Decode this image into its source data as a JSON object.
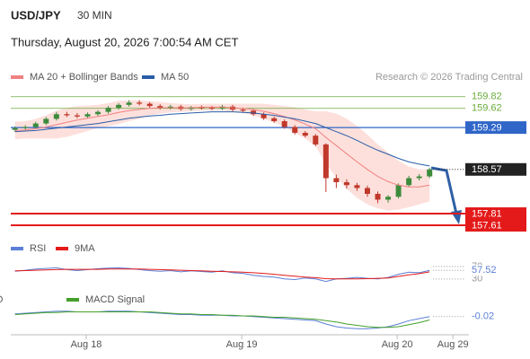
{
  "header": {
    "symbol": "USD/JPY",
    "interval": "30 MIN",
    "timestamp": "Thursday, August 20, 2026 7:00:54 AM CET"
  },
  "chart_data": [
    {
      "type": "candlestick",
      "source": "Research © 2026 Trading Central",
      "x": [
        -11,
        -9.4,
        -7.8,
        -6.2,
        -4.6,
        -3,
        -1.4,
        0.2,
        1.8,
        3.4,
        5,
        6.6,
        8.2,
        9.8,
        11.4,
        13,
        14.6,
        16.2,
        17.8,
        19.4,
        21,
        22.6,
        24.2,
        25.8,
        27.4,
        29,
        30.6,
        32.2,
        33.8,
        35.4,
        37,
        38.6,
        40.2,
        41.8,
        43.4,
        45,
        46.6,
        48.2,
        49.8,
        51.4,
        53
      ],
      "open": [
        159.25,
        159.28,
        159.3,
        159.36,
        159.44,
        159.52,
        159.5,
        159.48,
        159.52,
        159.56,
        159.63,
        159.68,
        159.72,
        159.7,
        159.66,
        159.63,
        159.65,
        159.61,
        159.64,
        159.63,
        159.62,
        159.65,
        159.6,
        159.58,
        159.52,
        159.45,
        159.4,
        159.3,
        159.2,
        159.15,
        159.0,
        158.42,
        158.35,
        158.3,
        158.25,
        158.15,
        158.05,
        158.1,
        158.3,
        158.42,
        158.45
      ],
      "high": [
        159.31,
        159.33,
        159.39,
        159.47,
        159.56,
        159.56,
        159.54,
        159.55,
        159.59,
        159.66,
        159.71,
        159.76,
        159.76,
        159.73,
        159.69,
        159.68,
        159.68,
        159.66,
        159.67,
        159.66,
        159.68,
        159.68,
        159.63,
        159.61,
        159.55,
        159.48,
        159.43,
        159.33,
        159.23,
        159.18,
        159.02,
        158.48,
        158.4,
        158.34,
        158.29,
        158.19,
        158.13,
        158.33,
        158.46,
        158.49,
        158.6
      ],
      "low": [
        159.22,
        159.25,
        159.27,
        159.33,
        159.41,
        159.47,
        159.45,
        159.45,
        159.49,
        159.53,
        159.6,
        159.65,
        159.67,
        159.63,
        159.6,
        159.6,
        159.58,
        159.58,
        159.6,
        159.59,
        159.59,
        159.57,
        159.55,
        159.49,
        159.42,
        159.37,
        159.27,
        159.17,
        159.12,
        158.97,
        158.18,
        158.25,
        158.24,
        158.2,
        158.1,
        157.99,
        158.0,
        158.07,
        158.27,
        158.38,
        158.42
      ],
      "close": [
        159.28,
        159.3,
        159.36,
        159.44,
        159.52,
        159.5,
        159.48,
        159.52,
        159.56,
        159.63,
        159.68,
        159.72,
        159.7,
        159.66,
        159.63,
        159.65,
        159.61,
        159.64,
        159.63,
        159.62,
        159.65,
        159.6,
        159.58,
        159.52,
        159.45,
        159.4,
        159.3,
        159.2,
        159.15,
        159.0,
        158.42,
        158.35,
        158.3,
        158.25,
        158.15,
        158.05,
        158.1,
        158.3,
        158.42,
        158.45,
        158.57
      ],
      "up_color": "#3d8b3d",
      "down_color": "#c0392b",
      "series": [
        {
          "name": "MA 20 + Bollinger Bands",
          "color": "#f08080",
          "band_color": "#fde0dc",
          "values": [
            159.24,
            159.25,
            159.27,
            159.3,
            159.34,
            159.38,
            159.42,
            159.45,
            159.48,
            159.51,
            159.55,
            159.58,
            159.6,
            159.62,
            159.63,
            159.63,
            159.63,
            159.63,
            159.64,
            159.64,
            159.64,
            159.63,
            159.62,
            159.6,
            159.57,
            159.53,
            159.48,
            159.42,
            159.35,
            159.27,
            159.12,
            158.98,
            158.84,
            158.7,
            158.57,
            158.45,
            158.36,
            158.3,
            158.27,
            158.27,
            158.3
          ],
          "upper": [
            159.39,
            159.4,
            159.44,
            159.5,
            159.58,
            159.63,
            159.66,
            159.67,
            159.68,
            159.71,
            159.75,
            159.76,
            159.76,
            159.74,
            159.73,
            159.71,
            159.7,
            159.69,
            159.7,
            159.7,
            159.7,
            159.7,
            159.7,
            159.7,
            159.7,
            159.68,
            159.66,
            159.64,
            159.6,
            159.57,
            159.57,
            159.53,
            159.44,
            159.32,
            159.17,
            159.0,
            158.86,
            158.72,
            158.62,
            158.57,
            158.58
          ],
          "lower": [
            159.09,
            159.1,
            159.1,
            159.1,
            159.1,
            159.13,
            159.18,
            159.23,
            159.28,
            159.31,
            159.35,
            159.4,
            159.44,
            159.5,
            159.53,
            159.55,
            159.56,
            159.57,
            159.58,
            159.58,
            159.58,
            159.56,
            159.54,
            159.5,
            159.44,
            159.38,
            159.3,
            159.2,
            159.1,
            158.97,
            158.67,
            158.43,
            158.24,
            158.08,
            157.97,
            157.9,
            157.86,
            157.88,
            157.92,
            157.97,
            158.02
          ]
        },
        {
          "name": "MA 50",
          "color": "#2a5da8",
          "values": [
            159.22,
            159.23,
            159.24,
            159.26,
            159.28,
            159.3,
            159.32,
            159.34,
            159.36,
            159.39,
            159.42,
            159.45,
            159.47,
            159.49,
            159.5,
            159.52,
            159.53,
            159.54,
            159.55,
            159.56,
            159.56,
            159.56,
            159.55,
            159.54,
            159.52,
            159.5,
            159.47,
            159.44,
            159.4,
            159.36,
            159.29,
            159.22,
            159.15,
            159.07,
            158.98,
            158.9,
            158.83,
            158.76,
            158.7,
            158.66,
            158.63
          ]
        }
      ],
      "levels": [
        {
          "value": 159.82,
          "color": "#6aab3c",
          "style": "text",
          "line": "thin"
        },
        {
          "value": 159.62,
          "color": "#6aab3c",
          "style": "text",
          "line": "thin"
        },
        {
          "value": 159.29,
          "color": "#2f66c8",
          "style": "box",
          "line": "solid"
        },
        {
          "value": 158.57,
          "color": "#222222",
          "style": "box",
          "line": "dotted"
        },
        {
          "value": 157.81,
          "color": "#e41a1a",
          "style": "box",
          "line": "bold"
        },
        {
          "value": 157.61,
          "color": "#e41a1a",
          "style": "box",
          "line": "bold"
        }
      ],
      "xlim": [
        -11.65,
        58.1
      ],
      "ylim": [
        157.44,
        159.94
      ]
    },
    {
      "type": "line",
      "x": [
        -11,
        -9.4,
        -7.8,
        -6.2,
        -4.6,
        -3,
        -1.4,
        0.2,
        1.8,
        3.4,
        5,
        6.6,
        8.2,
        9.8,
        11.4,
        13,
        14.6,
        16.2,
        17.8,
        19.4,
        21,
        22.6,
        24.2,
        25.8,
        27.4,
        29,
        30.6,
        32.2,
        33.8,
        35.4,
        37,
        38.6,
        40.2,
        41.8,
        43.4,
        45,
        46.6,
        48.2,
        49.8,
        51.4,
        53
      ],
      "series": [
        {
          "name": "RSI",
          "color": "#5b7fd6",
          "values": [
            55,
            58,
            62,
            64,
            66,
            60,
            57,
            60,
            63,
            65,
            66,
            64,
            60,
            57,
            55,
            57,
            53,
            56,
            54,
            52,
            56,
            50,
            48,
            42,
            38,
            36,
            30,
            28,
            33,
            30,
            22,
            30,
            32,
            35,
            32,
            30,
            35,
            45,
            52,
            50,
            57.52
          ]
        },
        {
          "name": "9MA",
          "color": "#e41a1a",
          "values": [
            56,
            57,
            58,
            59,
            60,
            61,
            61,
            61,
            61,
            62,
            62,
            62,
            62,
            61,
            60,
            59,
            58,
            57,
            56,
            55,
            54,
            53,
            52,
            50,
            48,
            45,
            42,
            39,
            36,
            34,
            31,
            30,
            30,
            30,
            31,
            32,
            33,
            38,
            43,
            47,
            53
          ]
        }
      ],
      "xlim": [
        -11.65,
        58.1
      ],
      "ylim": [
        15,
        96
      ],
      "yticks": [
        30,
        70
      ]
    },
    {
      "type": "line",
      "x": [
        -11,
        -9.4,
        -7.8,
        -6.2,
        -4.6,
        -3,
        -1.4,
        0.2,
        1.8,
        3.4,
        5,
        6.6,
        8.2,
        9.8,
        11.4,
        13,
        14.6,
        16.2,
        17.8,
        19.4,
        21,
        22.6,
        24.2,
        25.8,
        27.4,
        29,
        30.6,
        32.2,
        33.8,
        35.4,
        37,
        38.6,
        40.2,
        41.8,
        43.4,
        45,
        46.6,
        48.2,
        49.8,
        51.4,
        53
      ],
      "series": [
        {
          "name": "MACD",
          "color": "#5b7fd6",
          "values": [
            0.02,
            0.03,
            0.04,
            0.05,
            0.06,
            0.06,
            0.05,
            0.05,
            0.05,
            0.06,
            0.06,
            0.06,
            0.05,
            0.04,
            0.03,
            0.02,
            0.01,
            0.01,
            0.0,
            0.0,
            0.0,
            -0.01,
            -0.01,
            -0.02,
            -0.03,
            -0.04,
            -0.05,
            -0.06,
            -0.07,
            -0.08,
            -0.13,
            -0.17,
            -0.19,
            -0.2,
            -0.2,
            -0.19,
            -0.17,
            -0.13,
            -0.08,
            -0.05,
            -0.02
          ]
        },
        {
          "name": "MACD Signal",
          "color": "#44a02a",
          "values": [
            0.01,
            0.02,
            0.03,
            0.04,
            0.04,
            0.05,
            0.05,
            0.05,
            0.05,
            0.05,
            0.05,
            0.05,
            0.05,
            0.05,
            0.04,
            0.03,
            0.02,
            0.02,
            0.01,
            0.01,
            0.0,
            0.0,
            -0.01,
            -0.01,
            -0.02,
            -0.03,
            -0.03,
            -0.04,
            -0.05,
            -0.06,
            -0.08,
            -0.1,
            -0.13,
            -0.15,
            -0.17,
            -0.18,
            -0.18,
            -0.17,
            -0.14,
            -0.11,
            -0.07
          ]
        }
      ],
      "xlim": [
        -11.65,
        58.1
      ],
      "ylim": [
        -0.25,
        0.15
      ],
      "xticks": [
        {
          "value": 0,
          "label": "Aug 18"
        },
        {
          "value": 24,
          "label": "Aug 19"
        },
        {
          "value": 48,
          "label": "Aug 20"
        },
        {
          "value": 56.6,
          "label": "Aug 29"
        }
      ]
    }
  ]
}
